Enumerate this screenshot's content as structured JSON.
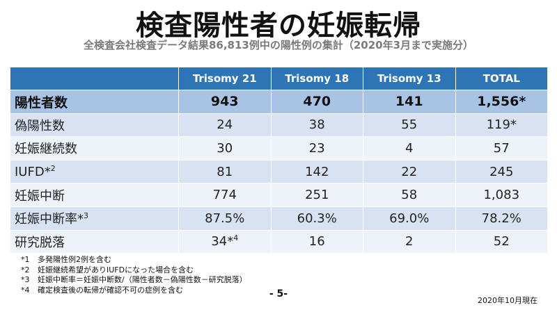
{
  "title": "検査陽性者の妊娠転帰",
  "subtitle": "全検査会社検査データ結果86,813例中の陽性例の集計（2020年3月まで実施分）",
  "table": {
    "headers": [
      "",
      "Trisomy 21",
      "Trisomy 18",
      "Trisomy 13",
      "TOTAL"
    ],
    "rows": [
      {
        "label": "陽性者数",
        "label_sup": "",
        "cells": [
          {
            "v": "943",
            "s": ""
          },
          {
            "v": "470",
            "s": ""
          },
          {
            "v": "141",
            "s": ""
          },
          {
            "v": "1,556*",
            "s": ""
          }
        ]
      },
      {
        "label": "偽陽性数",
        "label_sup": "",
        "cells": [
          {
            "v": "24",
            "s": ""
          },
          {
            "v": "38",
            "s": ""
          },
          {
            "v": "55",
            "s": ""
          },
          {
            "v": "119*",
            "s": ""
          }
        ]
      },
      {
        "label": "妊娠継続数",
        "label_sup": "",
        "cells": [
          {
            "v": "30",
            "s": ""
          },
          {
            "v": "23",
            "s": ""
          },
          {
            "v": "4",
            "s": ""
          },
          {
            "v": "57",
            "s": ""
          }
        ]
      },
      {
        "label": "IUFD*",
        "label_sup": "2",
        "cells": [
          {
            "v": "81",
            "s": ""
          },
          {
            "v": "142",
            "s": ""
          },
          {
            "v": "22",
            "s": ""
          },
          {
            "v": "245",
            "s": ""
          }
        ]
      },
      {
        "label": "妊娠中断",
        "label_sup": "",
        "cells": [
          {
            "v": "774",
            "s": ""
          },
          {
            "v": "251",
            "s": ""
          },
          {
            "v": "58",
            "s": ""
          },
          {
            "v": "1,083",
            "s": ""
          }
        ]
      },
      {
        "label": "妊娠中断率*",
        "label_sup": "3",
        "cells": [
          {
            "v": "87.5%",
            "s": ""
          },
          {
            "v": "60.3%",
            "s": ""
          },
          {
            "v": "69.0%",
            "s": ""
          },
          {
            "v": "78.2%",
            "s": ""
          }
        ]
      },
      {
        "label": "研究脱落",
        "label_sup": "",
        "cells": [
          {
            "v": "34*",
            "s": "4"
          },
          {
            "v": "16",
            "s": ""
          },
          {
            "v": "2",
            "s": ""
          },
          {
            "v": "52",
            "s": ""
          }
        ]
      }
    ]
  },
  "footnotes": [
    {
      "num": "*1",
      "text": "多発陽性例2例を含む"
    },
    {
      "num": "*2",
      "text": "妊娠継続希望がありIUFDになった場合を含む"
    },
    {
      "num": "*3",
      "text": "妊娠中断率＝妊娠中断数/（陽性者数－偽陽性数－研究脱落）"
    },
    {
      "num": "*4",
      "text": "確定検査後の転帰が確認不可の症例を含む"
    }
  ],
  "page_number": "- 5-",
  "date_note": "2020年10月現在",
  "colors": {
    "header": "#2e75b6",
    "row_dark": "#a9c3e5",
    "row_alt1": "#d9e2f2",
    "row_alt2": "#eef2f9"
  }
}
